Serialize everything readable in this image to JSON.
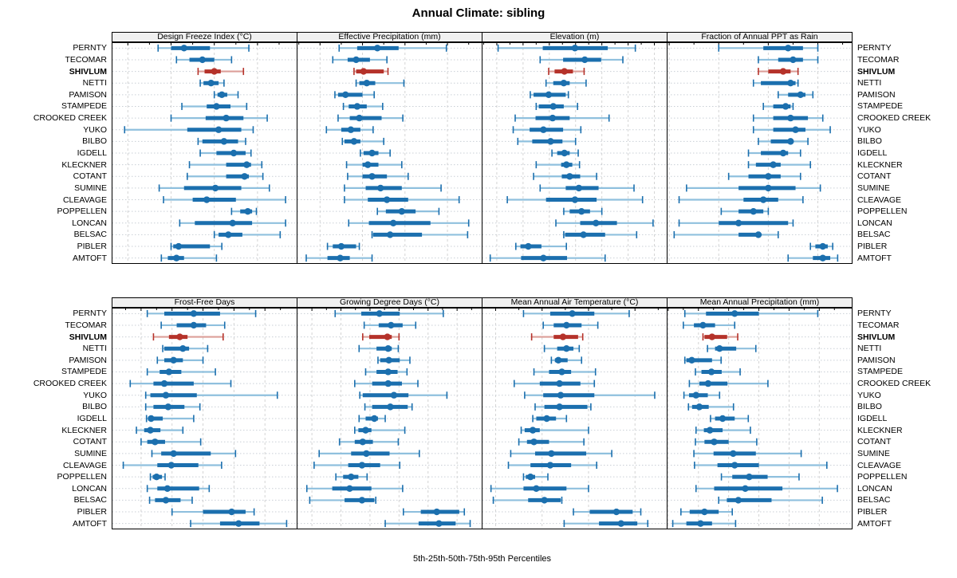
{
  "title": "Annual Climate: sibling",
  "footer": "5th-25th-50th-75th-95th Percentiles",
  "chart_data": {
    "type": "percentile-dotplot",
    "layout": "2 rows x 4 columns, site names on both sides",
    "percentiles_shown": [
      5,
      25,
      50,
      75,
      95
    ],
    "sites": [
      "PERNTY",
      "TECOMAR",
      "SHIVLUM",
      "NETTI",
      "PAMISON",
      "STAMPEDE",
      "CROOKED CREEK",
      "YUKO",
      "BILBO",
      "IGDELL",
      "KLECKNER",
      "COTANT",
      "SUMINE",
      "CLEAVAGE",
      "POPPELLEN",
      "LONCAN",
      "BELSAC",
      "PIBLER",
      "AMTOFT"
    ],
    "highlight_site": "SHIVLUM",
    "colors": {
      "normal": "#1b6fae",
      "normal_light": "#8fc0de",
      "highlight": "#b5322a",
      "highlight_light": "#dc9f99",
      "gridline": "#d4d4d4",
      "row_guide": "#c9cfd6",
      "header_bg": "#f0f0f0",
      "border": "#000000"
    },
    "panels": [
      {
        "title": "Design Freeze Index (°C)",
        "ticks": [
          200,
          400,
          600,
          800
        ],
        "xlim": [
          125,
          985
        ],
        "values": [
          [
            340,
            400,
            460,
            580,
            760
          ],
          [
            425,
            485,
            545,
            600,
            680
          ],
          [
            525,
            555,
            600,
            630,
            735
          ],
          [
            535,
            550,
            585,
            620,
            645
          ],
          [
            600,
            615,
            635,
            660,
            710
          ],
          [
            450,
            565,
            610,
            675,
            750
          ],
          [
            400,
            560,
            655,
            735,
            845
          ],
          [
            185,
            475,
            620,
            725,
            780
          ],
          [
            525,
            545,
            645,
            710,
            745
          ],
          [
            535,
            610,
            690,
            745,
            770
          ],
          [
            485,
            655,
            750,
            770,
            820
          ],
          [
            475,
            655,
            740,
            760,
            825
          ],
          [
            345,
            460,
            605,
            725,
            855
          ],
          [
            365,
            500,
            565,
            700,
            930
          ],
          [
            680,
            720,
            755,
            775,
            795
          ],
          [
            440,
            510,
            685,
            775,
            930
          ],
          [
            600,
            620,
            665,
            730,
            905
          ],
          [
            400,
            410,
            435,
            580,
            635
          ],
          [
            355,
            385,
            425,
            460,
            610
          ]
        ]
      },
      {
        "title": "Effective Precipitation (mm)",
        "ticks": [
          -400,
          -200,
          0,
          200
        ],
        "xlim": [
          -510,
          365
        ],
        "values": [
          [
            -310,
            -225,
            -130,
            -30,
            195
          ],
          [
            -340,
            -270,
            -230,
            -165,
            -85
          ],
          [
            -240,
            -230,
            -195,
            -100,
            -80
          ],
          [
            -230,
            -215,
            -180,
            -140,
            -5
          ],
          [
            -330,
            -315,
            -280,
            -200,
            -145
          ],
          [
            -290,
            -265,
            -225,
            -180,
            -105
          ],
          [
            -315,
            -260,
            -215,
            -110,
            -10
          ],
          [
            -370,
            -300,
            -255,
            -210,
            -150
          ],
          [
            -295,
            -285,
            -240,
            -210,
            -100
          ],
          [
            -210,
            -195,
            -155,
            -125,
            -70
          ],
          [
            -275,
            -200,
            -175,
            -125,
            -15
          ],
          [
            -270,
            -200,
            -155,
            -85,
            15
          ],
          [
            -285,
            -185,
            -115,
            -15,
            170
          ],
          [
            -285,
            -175,
            -85,
            15,
            255
          ],
          [
            -130,
            -90,
            -15,
            50,
            160
          ],
          [
            -265,
            -170,
            -55,
            120,
            300
          ],
          [
            -155,
            -150,
            -70,
            80,
            295
          ],
          [
            -365,
            -340,
            -300,
            -230,
            -215
          ],
          [
            -465,
            -365,
            -305,
            -260,
            -155
          ]
        ]
      },
      {
        "title": "Elevation (m)",
        "ticks": [
          1400,
          1600,
          1800,
          2000,
          2200,
          2400,
          2600
        ],
        "xlim": [
          1285,
          2700
        ],
        "values": [
          [
            1410,
            1750,
            1995,
            2245,
            2455
          ],
          [
            1730,
            1905,
            2070,
            2195,
            2360
          ],
          [
            1795,
            1840,
            1915,
            1980,
            2065
          ],
          [
            1775,
            1830,
            1910,
            1955,
            2080
          ],
          [
            1655,
            1680,
            1795,
            1925,
            1945
          ],
          [
            1700,
            1720,
            1830,
            1910,
            2015
          ],
          [
            1540,
            1695,
            1825,
            1955,
            2255
          ],
          [
            1525,
            1650,
            1755,
            1905,
            2040
          ],
          [
            1560,
            1670,
            1810,
            1900,
            2000
          ],
          [
            1820,
            1860,
            1915,
            1955,
            2020
          ],
          [
            1700,
            1890,
            1930,
            1975,
            2030
          ],
          [
            1680,
            1895,
            1955,
            2035,
            2160
          ],
          [
            1730,
            1925,
            2025,
            2175,
            2445
          ],
          [
            1480,
            1775,
            1995,
            2160,
            2510
          ],
          [
            1910,
            1955,
            2045,
            2110,
            2200
          ],
          [
            1850,
            2035,
            2155,
            2315,
            2590
          ],
          [
            1910,
            1920,
            2060,
            2225,
            2465
          ],
          [
            1545,
            1580,
            1640,
            1740,
            1930
          ],
          [
            1350,
            1585,
            1755,
            1935,
            2225
          ]
        ]
      },
      {
        "title": "Fraction of Annual PPT as Rain",
        "ticks": [
          60,
          70,
          80,
          90
        ],
        "xlim": [
          59.5,
          97
        ],
        "values": [
          [
            70,
            79,
            84,
            87,
            90
          ],
          [
            78,
            82,
            85,
            87,
            90
          ],
          [
            78,
            80,
            83,
            84.5,
            86
          ],
          [
            77,
            78.5,
            84.5,
            85.5,
            86
          ],
          [
            82,
            84,
            86.5,
            87.5,
            89
          ],
          [
            79,
            81,
            83.5,
            84.5,
            85
          ],
          [
            77,
            81,
            84.5,
            88,
            91
          ],
          [
            77,
            81,
            85.5,
            87.5,
            92.5
          ],
          [
            78,
            80.5,
            84.5,
            85,
            88
          ],
          [
            76,
            78.5,
            83,
            84,
            86.5
          ],
          [
            76,
            77.5,
            81,
            82.5,
            88.5
          ],
          [
            72,
            76,
            80,
            82.5,
            86.5
          ],
          [
            63.5,
            74,
            80,
            85.5,
            90.5
          ],
          [
            62,
            75,
            79,
            82,
            87
          ],
          [
            70.5,
            74,
            77,
            79,
            80
          ],
          [
            62,
            70,
            74,
            84,
            85
          ],
          [
            61,
            74,
            78,
            78.5,
            82
          ],
          [
            88.5,
            89.5,
            91,
            92,
            93
          ],
          [
            84,
            89,
            91,
            92.5,
            94
          ]
        ]
      },
      {
        "title": "Frost-Free Days",
        "ticks": [
          80,
          100,
          120,
          140,
          160
        ],
        "xlim": [
          61,
          181
        ],
        "values": [
          [
            84,
            95,
            114,
            131,
            154
          ],
          [
            93,
            103,
            114,
            122,
            134
          ],
          [
            88,
            98,
            105,
            110,
            133
          ],
          [
            94,
            95,
            107,
            111,
            123
          ],
          [
            90.5,
            95,
            101,
            107,
            120
          ],
          [
            84,
            92,
            98,
            106,
            128
          ],
          [
            73,
            88,
            95,
            114,
            138
          ],
          [
            83,
            86,
            96,
            116,
            168
          ],
          [
            83,
            88,
            97.5,
            108,
            118
          ],
          [
            83.5,
            84.5,
            86.5,
            94,
            114
          ],
          [
            77,
            82,
            86,
            92.5,
            107
          ],
          [
            80,
            84,
            89,
            95.5,
            118.5
          ],
          [
            87,
            93,
            101,
            125,
            141
          ],
          [
            68.5,
            90.5,
            99.5,
            117,
            132
          ],
          [
            86,
            87.5,
            90,
            93.5,
            95.5
          ],
          [
            84,
            90.5,
            97,
            117.5,
            124
          ],
          [
            85.5,
            89,
            96,
            105.5,
            113
          ],
          [
            100,
            120,
            138.5,
            147.5,
            153
          ],
          [
            112,
            131,
            143,
            156.5,
            174
          ]
        ]
      },
      {
        "title": "Growing Degree Days (°C)",
        "ticks": [
          800,
          1000,
          1200,
          1400,
          1600,
          1800
        ],
        "xlim": [
          695,
          1975
        ],
        "values": [
          [
            960,
            1140,
            1265,
            1405,
            1705
          ],
          [
            1160,
            1260,
            1345,
            1425,
            1515
          ],
          [
            1150,
            1195,
            1320,
            1350,
            1400
          ],
          [
            1125,
            1245,
            1325,
            1350,
            1395
          ],
          [
            1255,
            1270,
            1330,
            1405,
            1475
          ],
          [
            1170,
            1245,
            1325,
            1390,
            1455
          ],
          [
            1095,
            1215,
            1325,
            1420,
            1530
          ],
          [
            1130,
            1150,
            1365,
            1465,
            1730
          ],
          [
            1165,
            1215,
            1340,
            1460,
            1490
          ],
          [
            1125,
            1170,
            1230,
            1255,
            1305
          ],
          [
            1095,
            1120,
            1170,
            1210,
            1440
          ],
          [
            990,
            1095,
            1150,
            1220,
            1395
          ],
          [
            850,
            1070,
            1175,
            1335,
            1540
          ],
          [
            815,
            1050,
            1145,
            1270,
            1405
          ],
          [
            965,
            1015,
            1070,
            1120,
            1180
          ],
          [
            765,
            940,
            1060,
            1210,
            1425
          ],
          [
            785,
            1025,
            1145,
            1230,
            1240
          ],
          [
            1430,
            1550,
            1660,
            1815,
            1850
          ],
          [
            1305,
            1535,
            1675,
            1790,
            1890
          ]
        ]
      },
      {
        "title": "Mean Annual Air Temperature (°C)",
        "ticks": [
          4,
          6,
          8,
          10
        ],
        "xlim": [
          3.4,
          11.4
        ],
        "values": [
          [
            5.2,
            6.35,
            7.3,
            8.25,
            9.75
          ],
          [
            6.05,
            6.5,
            7.05,
            7.7,
            8.4
          ],
          [
            5.55,
            6.5,
            6.9,
            7.55,
            7.75
          ],
          [
            6.1,
            6.65,
            7.05,
            7.35,
            7.6
          ],
          [
            6.4,
            6.55,
            6.7,
            7.1,
            7.7
          ],
          [
            5.65,
            6.3,
            6.85,
            7.25,
            8.3
          ],
          [
            4.8,
            5.9,
            6.75,
            7.65,
            8.25
          ],
          [
            5.25,
            6.05,
            6.8,
            8.25,
            10.85
          ],
          [
            5.7,
            6.1,
            6.75,
            7.95,
            8.1
          ],
          [
            5.6,
            5.75,
            6.2,
            6.6,
            7.05
          ],
          [
            5.1,
            5.25,
            5.6,
            5.9,
            8.0
          ],
          [
            5.0,
            5.35,
            5.65,
            6.3,
            7.8
          ],
          [
            4.65,
            5.7,
            6.4,
            7.9,
            9.0
          ],
          [
            4.55,
            5.5,
            6.35,
            7.25,
            8.35
          ],
          [
            5.2,
            5.3,
            5.5,
            5.7,
            6.25
          ],
          [
            3.8,
            5.2,
            5.75,
            7.05,
            8.0
          ],
          [
            3.9,
            5.4,
            6.1,
            6.8,
            6.85
          ],
          [
            7.35,
            8.05,
            9.2,
            9.9,
            10.25
          ],
          [
            6.95,
            8.45,
            9.4,
            10.1,
            10.55
          ]
        ]
      },
      {
        "title": "Mean Annual Precipitation (mm)",
        "ticks": [
          200,
          300,
          400,
          500,
          600,
          700
        ],
        "xlim": [
          195,
          810
        ],
        "values": [
          [
            255,
            325,
            420,
            500,
            695
          ],
          [
            250,
            285,
            315,
            355,
            420
          ],
          [
            315,
            320,
            345,
            395,
            430
          ],
          [
            330,
            355,
            370,
            425,
            490
          ],
          [
            255,
            260,
            278,
            345,
            375
          ],
          [
            290,
            310,
            343,
            377,
            438
          ],
          [
            270,
            303,
            332,
            396,
            530
          ],
          [
            252,
            269,
            292,
            331,
            370
          ],
          [
            267,
            279,
            303,
            334,
            416
          ],
          [
            340,
            355,
            380,
            420,
            465
          ],
          [
            292,
            318,
            338,
            380,
            472
          ],
          [
            290,
            320,
            352,
            400,
            493
          ],
          [
            285,
            350,
            415,
            490,
            640
          ],
          [
            287,
            363,
            420,
            500,
            725
          ],
          [
            376,
            412,
            468,
            529,
            633
          ],
          [
            292,
            352,
            455,
            578,
            760
          ],
          [
            367,
            394,
            432,
            542,
            710
          ],
          [
            242,
            271,
            320,
            367,
            412
          ],
          [
            215,
            260,
            307,
            345,
            423
          ]
        ]
      }
    ]
  }
}
